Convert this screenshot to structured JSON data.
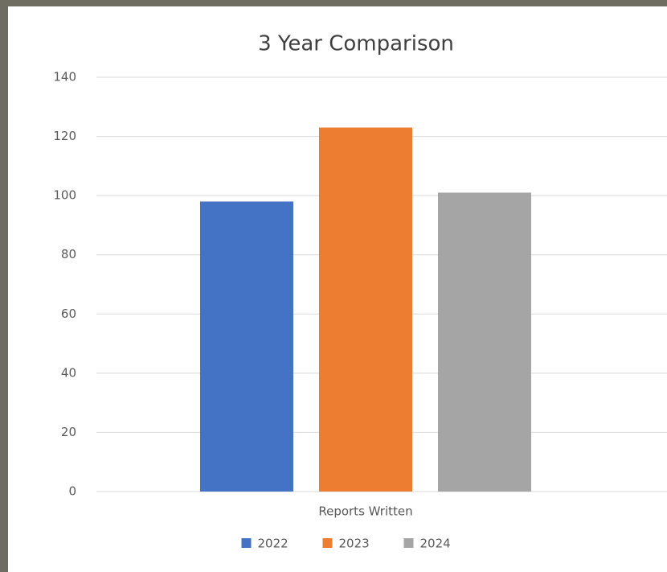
{
  "chart_data": {
    "type": "bar",
    "title": "3 Year Comparison",
    "categories": [
      "Reports Written"
    ],
    "series": [
      {
        "name": "2022",
        "color": "#4472c4",
        "values": [
          98
        ]
      },
      {
        "name": "2023",
        "color": "#ed7d31",
        "values": [
          123
        ]
      },
      {
        "name": "2024",
        "color": "#a5a5a5",
        "values": [
          101
        ]
      }
    ],
    "ylim": [
      0,
      140
    ],
    "yticks": [
      0,
      20,
      40,
      60,
      80,
      100,
      120,
      140
    ],
    "grid": true,
    "legend": "bottom"
  }
}
